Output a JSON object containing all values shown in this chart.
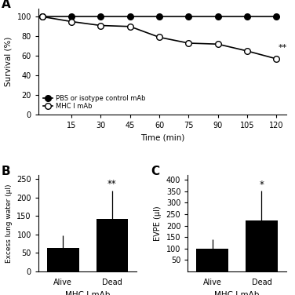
{
  "panel_A": {
    "time": [
      0,
      15,
      30,
      45,
      60,
      75,
      90,
      105,
      120
    ],
    "pbs_survival": [
      100,
      100,
      100,
      100,
      100,
      100,
      100,
      100,
      100
    ],
    "mhc_survival": [
      100,
      95,
      91,
      90,
      79,
      73,
      72,
      65,
      57
    ],
    "xlabel": "Time (min)",
    "ylabel": "Survival (%)",
    "ylim": [
      0,
      108
    ],
    "xlim": [
      -2,
      125
    ],
    "xticks": [
      15,
      30,
      45,
      60,
      75,
      90,
      105,
      120
    ],
    "yticks": [
      0,
      20,
      40,
      60,
      80,
      100
    ],
    "legend_pbs": "PBS or isotype control mAb",
    "legend_mhc": "MHC I mAb",
    "sig_label": "**",
    "sig_x": 121,
    "sig_y": 60
  },
  "panel_B": {
    "categories": [
      "Alive",
      "Dead"
    ],
    "values": [
      63,
      143
    ],
    "errors": [
      35,
      75
    ],
    "xlabel": "MHC I mAb",
    "ylabel": "Excess lung water (μl)",
    "ylim": [
      0,
      260
    ],
    "yticks": [
      0,
      50,
      100,
      150,
      200,
      250
    ],
    "sig_label": "**",
    "bar_color": "black"
  },
  "panel_C": {
    "categories": [
      "Alive",
      "Dead"
    ],
    "values": [
      100,
      222
    ],
    "errors": [
      40,
      130
    ],
    "xlabel": "MHC I mAb",
    "ylabel": "EVPE (μl)",
    "ylim": [
      0,
      420
    ],
    "yticks": [
      50,
      100,
      150,
      200,
      250,
      300,
      350,
      400
    ],
    "sig_label": "*",
    "bar_color": "black"
  },
  "panel_labels": [
    "A",
    "B",
    "C"
  ],
  "background_color": "#ffffff",
  "text_color": "#000000"
}
